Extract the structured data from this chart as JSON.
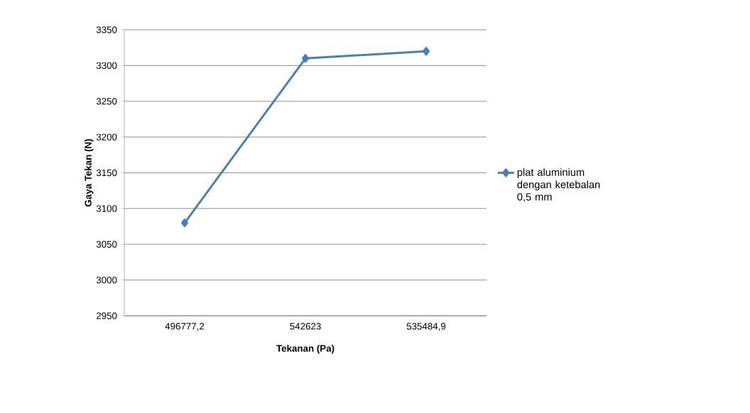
{
  "chart_data": {
    "type": "line",
    "xlabel": "Tekanan (Pa)",
    "ylabel": "Gaya Tekan (N)",
    "categories": [
      "496777,2",
      "542623",
      "535484,9"
    ],
    "series": [
      {
        "name": "plat aluminium dengan ketebalan 0,5 mm",
        "color": "#4a7ebb",
        "values": [
          3080,
          3310,
          3320
        ]
      }
    ],
    "ylim": [
      2950,
      3350
    ],
    "yticks": [
      2950,
      3000,
      3050,
      3100,
      3150,
      3200,
      3250,
      3300,
      3350
    ],
    "grid": "y",
    "legend": "right",
    "marker": "diamond",
    "line_style": "solid"
  }
}
